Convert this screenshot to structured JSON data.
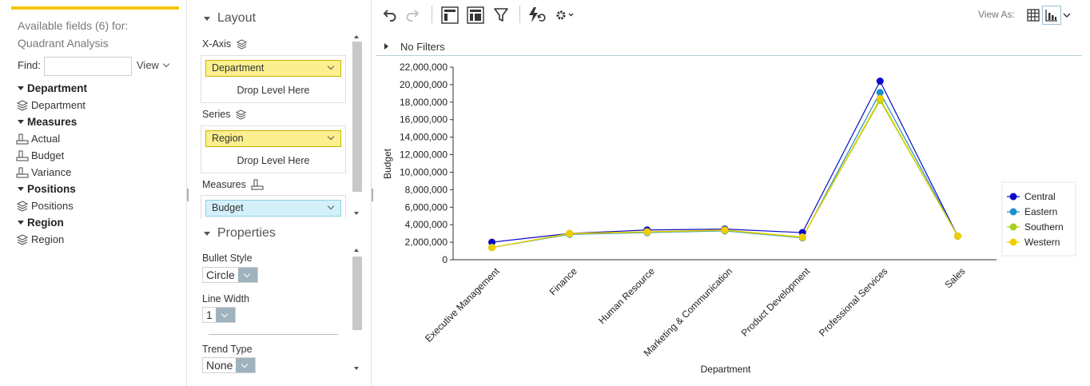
{
  "fields_panel": {
    "title": "Available fields (6) for: Quadrant Analysis",
    "find_label": "Find:",
    "find_value": "",
    "view_label": "View",
    "groups": [
      {
        "label": "Department",
        "items": [
          {
            "label": "Department",
            "icon": "hierarchy-icon"
          }
        ]
      },
      {
        "label": "Measures",
        "items": [
          {
            "label": "Actual",
            "icon": "measure-icon"
          },
          {
            "label": "Budget",
            "icon": "measure-icon"
          },
          {
            "label": "Variance",
            "icon": "measure-icon"
          }
        ]
      },
      {
        "label": "Positions",
        "items": [
          {
            "label": "Positions",
            "icon": "hierarchy-icon"
          }
        ]
      },
      {
        "label": "Region",
        "items": [
          {
            "label": "Region",
            "icon": "hierarchy-icon"
          }
        ]
      }
    ]
  },
  "layout_panel": {
    "layout_heading": "Layout",
    "x_axis": {
      "label": "X-Axis",
      "pill": "Department",
      "drop_text": "Drop Level Here"
    },
    "series": {
      "label": "Series",
      "pill": "Region",
      "drop_text": "Drop Level Here"
    },
    "measures": {
      "label": "Measures",
      "pill": "Budget"
    },
    "properties_heading": "Properties",
    "bullet_style": {
      "label": "Bullet Style",
      "value": "Circle"
    },
    "line_width": {
      "label": "Line Width",
      "value": "1"
    },
    "trend_type": {
      "label": "Trend Type",
      "value": "None"
    }
  },
  "toolbar": {
    "view_as_label": "View As:",
    "icons": [
      "undo-icon",
      "redo-icon",
      "layout-panel-icon",
      "fields-panel-icon",
      "filter-icon",
      "refresh-icon",
      "settings-icon",
      "grid-view-icon",
      "chart-view-icon"
    ]
  },
  "filter_bar": {
    "text": "No Filters"
  },
  "colors": {
    "accent": "#f2c811",
    "central": "#0a0ac8",
    "eastern": "#1e8fce",
    "southern": "#a6d11c",
    "western": "#f2cd00"
  },
  "chart_data": {
    "type": "line",
    "title": "",
    "xlabel": "Department",
    "ylabel": "Budget",
    "ylim": [
      0,
      22000000
    ],
    "yticks": [
      "0",
      "2,000,000",
      "4,000,000",
      "6,000,000",
      "8,000,000",
      "10,000,000",
      "12,000,000",
      "14,000,000",
      "16,000,000",
      "18,000,000",
      "20,000,000",
      "22,000,000"
    ],
    "categories": [
      "Executive Management",
      "Finance",
      "Human Resource",
      "Marketing & Communication",
      "Product Development",
      "Professional Services",
      "Sales"
    ],
    "legend_position": "right",
    "bullet": "circle",
    "series": [
      {
        "name": "Central",
        "color": "#0a0ac8",
        "values": [
          2000000,
          3000000,
          3400000,
          3500000,
          3100000,
          20400000,
          2700000
        ]
      },
      {
        "name": "Eastern",
        "color": "#1e8fce",
        "values": [
          1400000,
          2900000,
          3100000,
          3300000,
          2500000,
          19100000,
          2700000
        ]
      },
      {
        "name": "Southern",
        "color": "#a6d11c",
        "values": [
          1400000,
          2950000,
          3150000,
          3350000,
          2550000,
          18200000,
          2700000
        ]
      },
      {
        "name": "Western",
        "color": "#f2cd00",
        "values": [
          1400000,
          3000000,
          3200000,
          3400000,
          2600000,
          18400000,
          2700000
        ]
      }
    ]
  }
}
